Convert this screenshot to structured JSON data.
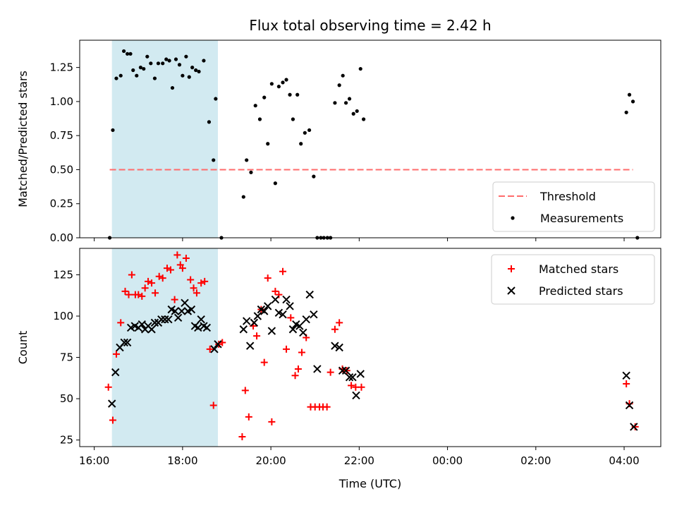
{
  "chart_data": {
    "type": "scatter",
    "title": "Flux total observing time = 2.42 h",
    "xlabel": "Time (UTC)",
    "x_unit": "hours (UTC, 24.0 = 00:00 next day)",
    "xlim": [
      15.67,
      28.83
    ],
    "x_ticks": [
      {
        "value": 16,
        "label": "16:00"
      },
      {
        "value": 18,
        "label": "18:00"
      },
      {
        "value": 20,
        "label": "20:00"
      },
      {
        "value": 22,
        "label": "22:00"
      },
      {
        "value": 24,
        "label": "00:00"
      },
      {
        "value": 26,
        "label": "02:00"
      },
      {
        "value": 28,
        "label": "04:00"
      }
    ],
    "highlight_span": {
      "x0": 16.4,
      "x1": 18.8,
      "color": "#add8e6"
    },
    "colors": {
      "threshold": "#ff6b6b",
      "measurements": "#000000",
      "matched": "#ff0000",
      "predicted": "#000000",
      "span": "#add8e6"
    },
    "panels": [
      {
        "ylabel": "Matched/Predicted stars",
        "ylim": [
          0,
          1.45
        ],
        "y_ticks": [
          "0.00",
          "0.25",
          "0.50",
          "0.75",
          "1.00",
          "1.25"
        ],
        "y_tick_values": [
          0,
          0.25,
          0.5,
          0.75,
          1.0,
          1.25
        ],
        "legend": {
          "placement": "lower-right",
          "entries": [
            "Threshold",
            "Measurements"
          ]
        },
        "series": [
          {
            "name": "Threshold",
            "kind": "hline",
            "y": 0.5,
            "x": [
              16.35,
              28.2
            ]
          },
          {
            "name": "Measurements",
            "kind": "points",
            "x": [
              16.35,
              16.42,
              16.5,
              16.6,
              16.67,
              16.75,
              16.82,
              16.88,
              16.96,
              17.05,
              17.12,
              17.2,
              17.28,
              17.37,
              17.45,
              17.55,
              17.63,
              17.7,
              17.77,
              17.85,
              17.93,
              18.0,
              18.08,
              18.15,
              18.22,
              18.3,
              18.37,
              18.48,
              18.6,
              18.7,
              18.75,
              18.88,
              19.38,
              19.45,
              19.55,
              19.65,
              19.75,
              19.85,
              19.93,
              20.02,
              20.1,
              20.18,
              20.27,
              20.35,
              20.43,
              20.5,
              20.6,
              20.68,
              20.77,
              20.87,
              20.97,
              21.05,
              21.13,
              21.2,
              21.28,
              21.35,
              21.45,
              21.55,
              21.63,
              21.7,
              21.78,
              21.87,
              21.95,
              22.03,
              22.1,
              28.05,
              28.12,
              28.2,
              28.3
            ],
            "y": [
              0.0,
              0.79,
              1.17,
              1.19,
              1.37,
              1.35,
              1.35,
              1.23,
              1.19,
              1.25,
              1.24,
              1.33,
              1.28,
              1.17,
              1.28,
              1.28,
              1.31,
              1.3,
              1.1,
              1.31,
              1.27,
              1.19,
              1.33,
              1.18,
              1.25,
              1.23,
              1.22,
              1.3,
              0.85,
              0.57,
              1.02,
              0.0,
              0.3,
              0.57,
              0.48,
              0.97,
              0.87,
              1.03,
              0.69,
              1.13,
              0.4,
              1.11,
              1.14,
              1.16,
              1.05,
              0.87,
              1.05,
              0.69,
              0.77,
              0.79,
              0.45,
              0.0,
              0.0,
              0.0,
              0.0,
              0.0,
              0.99,
              1.12,
              1.19,
              0.99,
              1.02,
              0.91,
              0.93,
              1.24,
              0.87,
              0.92,
              1.05,
              1.0,
              0.0
            ]
          }
        ]
      },
      {
        "ylabel": "Count",
        "ylim": [
          21,
          141
        ],
        "y_ticks": [
          "25",
          "50",
          "75",
          "100",
          "125"
        ],
        "y_tick_values": [
          25,
          50,
          75,
          100,
          125
        ],
        "legend": {
          "placement": "top-right",
          "entries": [
            "Matched stars",
            "Predicted stars"
          ]
        },
        "series": [
          {
            "name": "Matched stars",
            "kind": "plus",
            "x": [
              16.32,
              16.42,
              16.5,
              16.6,
              16.7,
              16.78,
              16.85,
              16.93,
              17.0,
              17.08,
              17.15,
              17.22,
              17.3,
              17.38,
              17.47,
              17.55,
              17.65,
              17.73,
              17.82,
              17.88,
              17.95,
              18.0,
              18.08,
              18.18,
              18.25,
              18.32,
              18.42,
              18.5,
              18.62,
              18.7,
              18.82,
              18.9,
              19.35,
              19.42,
              19.5,
              19.6,
              19.68,
              19.78,
              19.85,
              19.93,
              20.02,
              20.1,
              20.18,
              20.27,
              20.35,
              20.45,
              20.55,
              20.62,
              20.7,
              20.8,
              20.9,
              21.0,
              21.1,
              21.18,
              21.27,
              21.35,
              21.45,
              21.55,
              21.62,
              21.72,
              21.82,
              21.92,
              22.05,
              28.05,
              28.12,
              28.25
            ],
            "y": [
              57,
              37,
              77,
              96,
              115,
              113,
              125,
              113,
              113,
              112,
              117,
              121,
              120,
              114,
              124,
              123,
              129,
              128,
              110,
              137,
              131,
              129,
              135,
              122,
              117,
              114,
              120,
              121,
              80,
              46,
              83,
              84,
              27,
              55,
              39,
              94,
              88,
              104,
              72,
              123,
              36,
              115,
              113,
              127,
              80,
              99,
              64,
              68,
              78,
              87,
              45,
              45,
              45,
              45,
              45,
              66,
              92,
              96,
              68,
              67,
              58,
              57,
              57,
              59,
              47,
              33
            ]
          },
          {
            "name": "Predicted stars",
            "kind": "cross",
            "x": [
              16.4,
              16.48,
              16.58,
              16.68,
              16.75,
              16.83,
              16.92,
              17.0,
              17.08,
              17.15,
              17.22,
              17.3,
              17.37,
              17.45,
              17.52,
              17.6,
              17.68,
              17.75,
              17.83,
              17.9,
              17.98,
              18.05,
              18.12,
              18.2,
              18.28,
              18.35,
              18.42,
              18.48,
              18.55,
              18.72,
              18.8,
              19.38,
              19.45,
              19.53,
              19.62,
              19.7,
              19.78,
              19.85,
              19.93,
              20.02,
              20.1,
              20.18,
              20.27,
              20.35,
              20.43,
              20.5,
              20.57,
              20.65,
              20.73,
              20.8,
              20.88,
              20.97,
              21.05,
              21.45,
              21.55,
              21.62,
              21.7,
              21.78,
              21.85,
              21.93,
              22.03,
              28.05,
              28.12,
              28.22
            ],
            "y": [
              47,
              66,
              81,
              84,
              84,
              93,
              94,
              93,
              95,
              92,
              94,
              92,
              96,
              96,
              98,
              98,
              98,
              104,
              103,
              99,
              103,
              108,
              103,
              104,
              94,
              93,
              98,
              94,
              93,
              80,
              83,
              92,
              97,
              82,
              96,
              100,
              104,
              103,
              106,
              91,
              110,
              102,
              101,
              110,
              106,
              92,
              95,
              94,
              90,
              98,
              113,
              101,
              68,
              82,
              81,
              67,
              67,
              63,
              63,
              52,
              65,
              64,
              46,
              33
            ]
          }
        ]
      }
    ]
  }
}
